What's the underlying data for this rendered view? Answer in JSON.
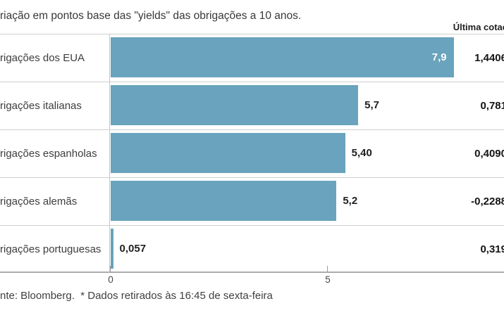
{
  "title": "riação em pontos base das \"yields\" das obrigações a 10 anos.",
  "right_header": "Última cotaç",
  "footer": "nte: Bloomberg.  * Dados retirados às 16:45 de sexta-feira",
  "colors": {
    "bar": "#69a3bd",
    "separator": "#cfcfcf",
    "axis": "#ababab",
    "bar_label_inside": "#ffffff",
    "text": "#3d3d3d"
  },
  "axis": {
    "ticks": [
      {
        "label": "0",
        "value": 0
      },
      {
        "label": "5",
        "value": 5
      }
    ]
  },
  "rows": [
    {
      "label": "rigações dos EUA",
      "value": 7.9,
      "value_label": "7,9",
      "quote": "1,4406"
    },
    {
      "label": "rigações italianas",
      "value": 5.7,
      "value_label": "5,7",
      "quote": "0,781"
    },
    {
      "label": "rigações espanholas",
      "value": 5.4,
      "value_label": "5,40",
      "quote": "0,4090"
    },
    {
      "label": "rigações alemãs",
      "value": 5.2,
      "value_label": "5,2",
      "quote": "-0,2288"
    },
    {
      "label": "rigações portuguesas",
      "value": 0.057,
      "value_label": "0,057",
      "quote": "0,319"
    }
  ],
  "chart_data": {
    "type": "bar",
    "orientation": "horizontal",
    "title": "riação em pontos base das \"yields\" das obrigações a 10 anos.",
    "categories": [
      "rigações dos EUA",
      "rigações italianas",
      "rigações espanholas",
      "rigações alemãs",
      "rigações portuguesas"
    ],
    "series": [
      {
        "name": "Variação em pontos base",
        "values": [
          7.9,
          5.7,
          5.4,
          5.2,
          0.057
        ],
        "labels": [
          "7,9",
          "5,7",
          "5,40",
          "5,2",
          "0,057"
        ]
      },
      {
        "name": "Última cotaç",
        "labels": [
          "1,4406",
          "0,781",
          "0,4090",
          "-0,2288",
          "0,319"
        ]
      }
    ],
    "xlabel": "",
    "ylabel": "",
    "xlim": [
      0,
      9.1
    ],
    "xticks": [
      0,
      5
    ],
    "grid": false,
    "legend": "none",
    "bar_color": "#69a3bd",
    "source_note": "nte: Bloomberg.  * Dados retirados às 16:45 de sexta-feira"
  }
}
